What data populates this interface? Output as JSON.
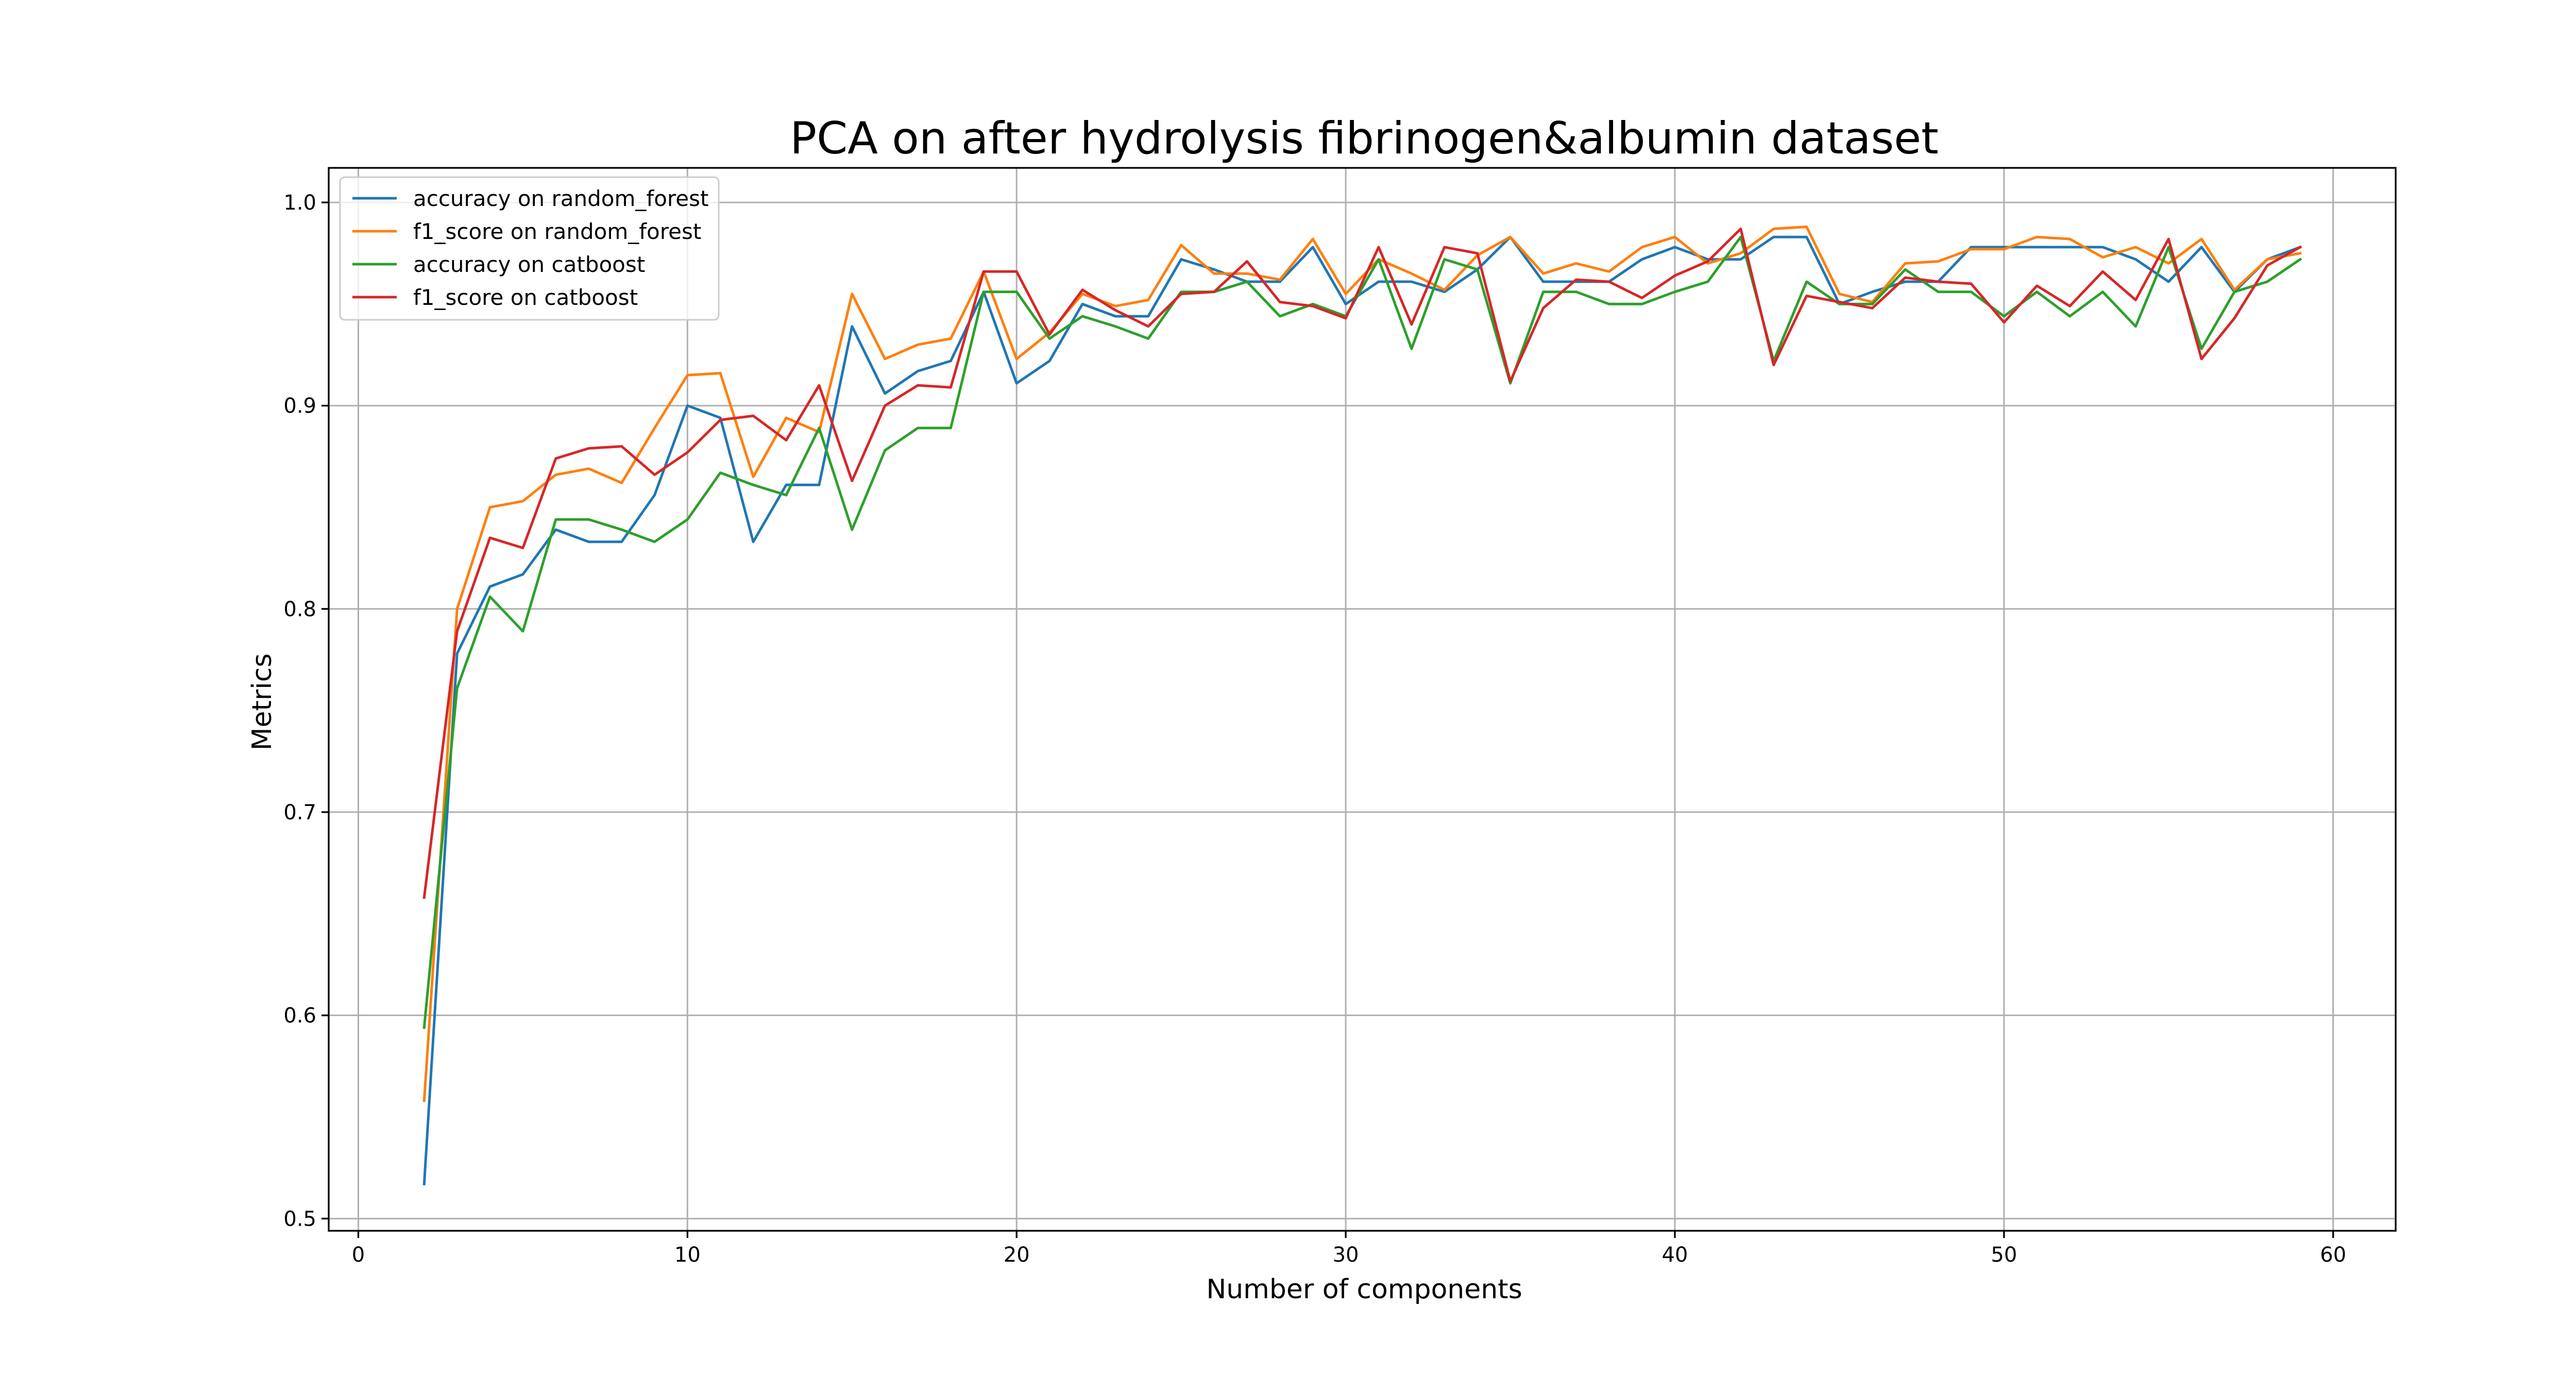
{
  "chart_data": {
    "type": "line",
    "title": "PCA on after hydrolysis fibrinogen&albumin dataset",
    "xlabel": "Number of components",
    "ylabel": "Metrics",
    "xlim": [
      -0.9,
      61.9
    ],
    "ylim": [
      0.494,
      1.017
    ],
    "xticks": [
      0,
      10,
      20,
      30,
      40,
      50,
      60
    ],
    "xtick_labels": [
      "0",
      "10",
      "20",
      "30",
      "40",
      "50",
      "60"
    ],
    "yticks": [
      0.5,
      0.6,
      0.7,
      0.8,
      0.9,
      1.0
    ],
    "ytick_labels": [
      "0.5",
      "0.6",
      "0.7",
      "0.8",
      "0.9",
      "1.0"
    ],
    "grid": true,
    "legend_position": "upper-left",
    "x": [
      2,
      3,
      4,
      5,
      6,
      7,
      8,
      9,
      10,
      11,
      12,
      13,
      14,
      15,
      16,
      17,
      18,
      19,
      20,
      21,
      22,
      23,
      24,
      25,
      26,
      27,
      28,
      29,
      30,
      31,
      32,
      33,
      34,
      35,
      36,
      37,
      38,
      39,
      40,
      41,
      42,
      43,
      44,
      45,
      46,
      47,
      48,
      49,
      50,
      51,
      52,
      53,
      54,
      55,
      56,
      57,
      58,
      59
    ],
    "series": [
      {
        "name": "accuracy on random_forest",
        "color": "#1f77b4",
        "values": [
          0.517,
          0.778,
          0.811,
          0.817,
          0.839,
          0.833,
          0.833,
          0.856,
          0.9,
          0.894,
          0.833,
          0.861,
          0.861,
          0.939,
          0.906,
          0.917,
          0.922,
          0.956,
          0.911,
          0.922,
          0.95,
          0.944,
          0.944,
          0.972,
          0.967,
          0.961,
          0.961,
          0.978,
          0.95,
          0.961,
          0.961,
          0.956,
          0.967,
          0.983,
          0.961,
          0.961,
          0.961,
          0.972,
          0.978,
          0.972,
          0.972,
          0.983,
          0.983,
          0.95,
          0.956,
          0.961,
          0.961,
          0.978,
          0.978,
          0.978,
          0.978,
          0.978,
          0.972,
          0.961,
          0.978,
          0.956,
          0.972,
          0.978
        ]
      },
      {
        "name": "f1_score on random_forest",
        "color": "#ff7f0e",
        "values": [
          0.558,
          0.8,
          0.85,
          0.853,
          0.866,
          0.869,
          0.862,
          0.889,
          0.915,
          0.916,
          0.865,
          0.894,
          0.887,
          0.955,
          0.923,
          0.93,
          0.933,
          0.966,
          0.923,
          0.936,
          0.955,
          0.949,
          0.952,
          0.979,
          0.965,
          0.965,
          0.962,
          0.982,
          0.955,
          0.972,
          0.965,
          0.957,
          0.974,
          0.983,
          0.965,
          0.97,
          0.966,
          0.978,
          0.983,
          0.97,
          0.975,
          0.987,
          0.988,
          0.955,
          0.951,
          0.97,
          0.971,
          0.977,
          0.977,
          0.983,
          0.982,
          0.973,
          0.978,
          0.97,
          0.982,
          0.957,
          0.972,
          0.975
        ]
      },
      {
        "name": "accuracy on catboost",
        "color": "#2ca02c",
        "values": [
          0.594,
          0.761,
          0.806,
          0.789,
          0.844,
          0.844,
          0.839,
          0.833,
          0.844,
          0.867,
          0.861,
          0.856,
          0.889,
          0.839,
          0.878,
          0.889,
          0.889,
          0.956,
          0.956,
          0.933,
          0.944,
          0.939,
          0.933,
          0.956,
          0.956,
          0.961,
          0.944,
          0.95,
          0.944,
          0.972,
          0.928,
          0.972,
          0.967,
          0.911,
          0.956,
          0.956,
          0.95,
          0.95,
          0.956,
          0.961,
          0.983,
          0.922,
          0.961,
          0.95,
          0.95,
          0.967,
          0.956,
          0.956,
          0.944,
          0.956,
          0.944,
          0.956,
          0.939,
          0.978,
          0.928,
          0.956,
          0.961,
          0.972
        ]
      },
      {
        "name": "f1_score on catboost",
        "color": "#d62728",
        "values": [
          0.658,
          0.789,
          0.835,
          0.83,
          0.874,
          0.879,
          0.88,
          0.866,
          0.877,
          0.893,
          0.895,
          0.883,
          0.91,
          0.863,
          0.9,
          0.91,
          0.909,
          0.966,
          0.966,
          0.935,
          0.957,
          0.947,
          0.939,
          0.955,
          0.956,
          0.971,
          0.951,
          0.949,
          0.943,
          0.978,
          0.94,
          0.978,
          0.975,
          0.912,
          0.948,
          0.962,
          0.961,
          0.953,
          0.964,
          0.971,
          0.987,
          0.92,
          0.954,
          0.951,
          0.948,
          0.963,
          0.961,
          0.96,
          0.941,
          0.959,
          0.949,
          0.966,
          0.952,
          0.982,
          0.923,
          0.943,
          0.969,
          0.978
        ]
      }
    ]
  }
}
